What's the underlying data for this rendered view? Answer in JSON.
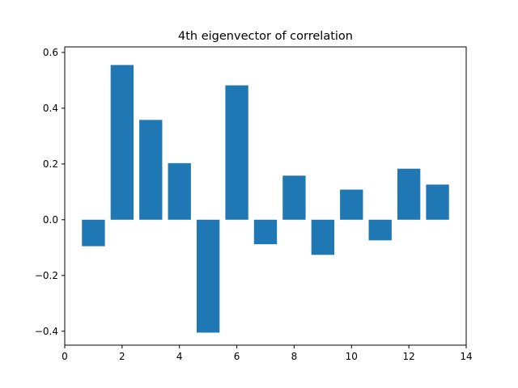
{
  "chart_data": {
    "type": "bar",
    "title": "4th eigenvector of correlation",
    "xlabel": "",
    "ylabel": "",
    "x": [
      1,
      2,
      3,
      4,
      5,
      6,
      7,
      8,
      9,
      10,
      11,
      12,
      13
    ],
    "values": [
      -0.095,
      0.555,
      0.358,
      0.203,
      -0.405,
      0.482,
      -0.088,
      0.158,
      -0.126,
      0.108,
      -0.074,
      0.183,
      0.126
    ],
    "bar_width": 0.8,
    "xlim": [
      0,
      14
    ],
    "ylim": [
      -0.45,
      0.62
    ],
    "xticks": [
      0,
      2,
      4,
      6,
      8,
      10,
      12,
      14
    ],
    "yticks": [
      -0.4,
      -0.2,
      0.0,
      0.2,
      0.4,
      0.6
    ],
    "ytick_labels": [
      "−0.4",
      "−0.2",
      "0.0",
      "0.2",
      "0.4",
      "0.6"
    ],
    "bar_color": "#1f77b4",
    "grid": false,
    "legend": "none"
  }
}
